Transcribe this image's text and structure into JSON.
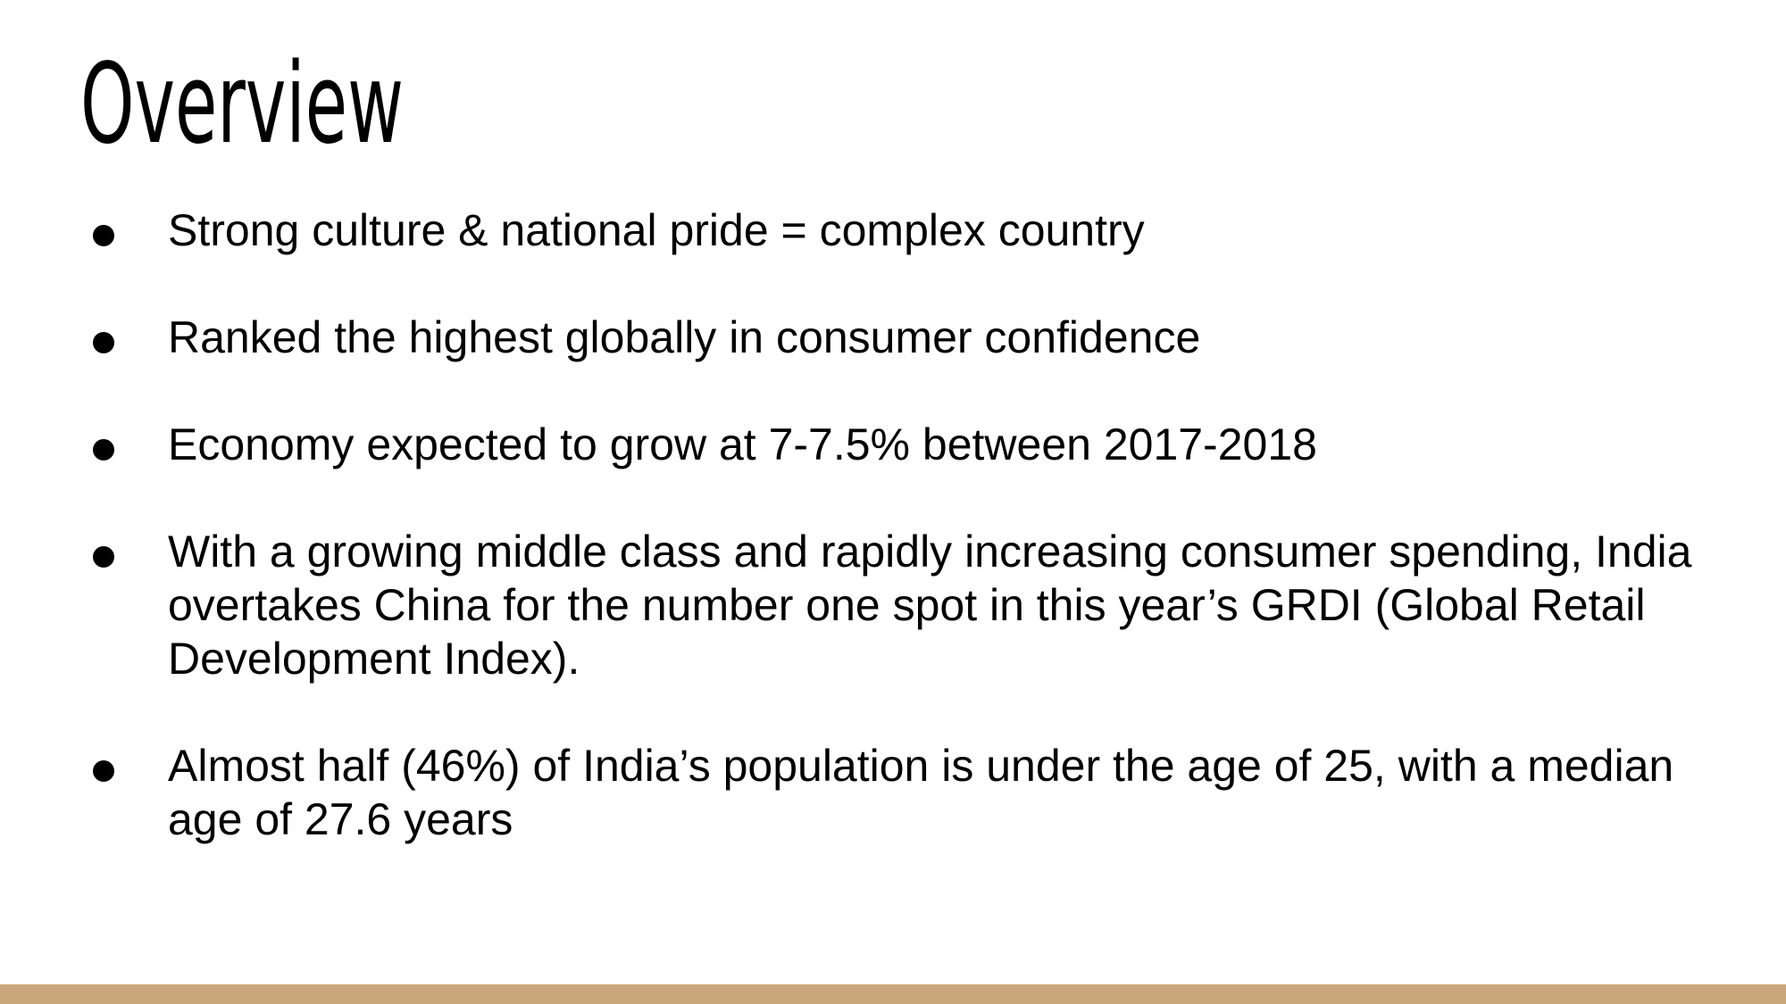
{
  "slide": {
    "title": "Overview",
    "bullets": [
      "Strong culture & national pride = complex country",
      "Ranked the highest globally in consumer confidence",
      "Economy expected to grow at 7-7.5% between 2017-2018",
      "With a growing middle class and rapidly increasing consumer spending, India overtakes China for the number one spot in this year’s GRDI (Global Retail Development Index).",
      "Almost half (46%) of India’s population is under the age of 25, with a median age of 27.6 years"
    ]
  },
  "colors": {
    "background": "#ffffff",
    "text": "#000000",
    "footer_bar": "#c9a77a"
  }
}
